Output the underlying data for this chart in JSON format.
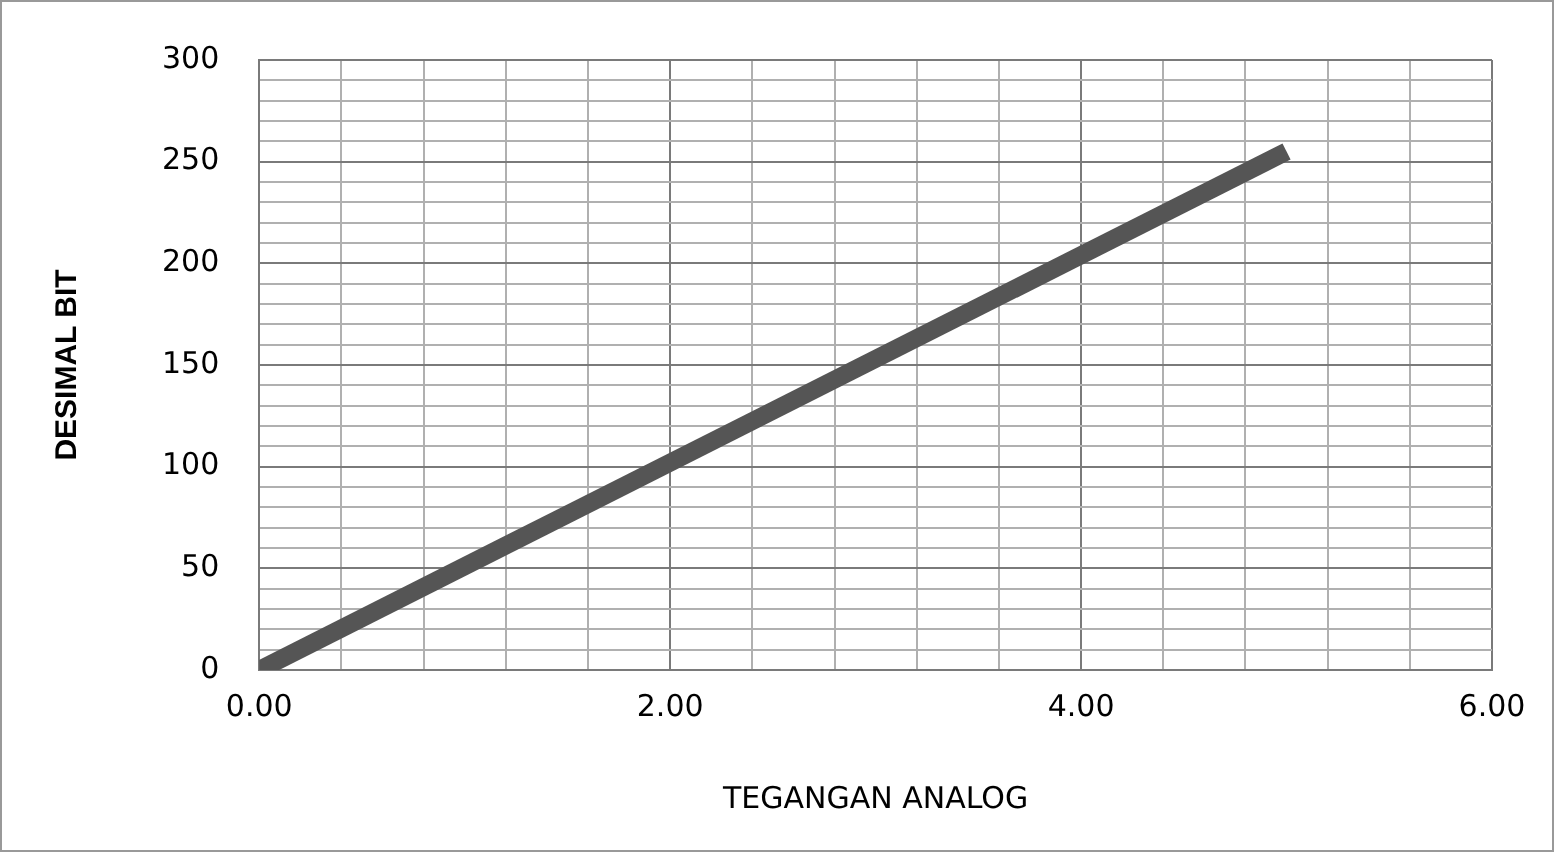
{
  "chart_data": {
    "type": "line",
    "xlabel": "TEGANGAN ANALOG",
    "ylabel": "DESIMAL BIT",
    "x": [
      0,
      5
    ],
    "series": [
      {
        "color": "#555555",
        "values": [
          0,
          255
        ]
      }
    ],
    "xlim": [
      0,
      6
    ],
    "xticks": [
      {
        "value": 0,
        "label": "0.00"
      },
      {
        "value": 0.4,
        "label": null
      },
      {
        "value": 0.8,
        "label": null
      },
      {
        "value": 1.2,
        "label": null
      },
      {
        "value": 1.6,
        "label": null
      },
      {
        "value": 2,
        "label": "2.00"
      },
      {
        "value": 2.4,
        "label": null
      },
      {
        "value": 2.8,
        "label": null
      },
      {
        "value": 3.2,
        "label": null
      },
      {
        "value": 3.6,
        "label": null
      },
      {
        "value": 4,
        "label": "4.00"
      },
      {
        "value": 4.4,
        "label": null
      },
      {
        "value": 4.8,
        "label": null
      },
      {
        "value": 5.2,
        "label": null
      },
      {
        "value": 5.6,
        "label": null
      },
      {
        "value": 6,
        "label": "6.00"
      }
    ],
    "ylim": [
      0,
      300
    ],
    "yticks": [
      0,
      {
        "value": 10,
        "label": null
      },
      {
        "value": 20,
        "label": null
      },
      {
        "value": 30,
        "label": null
      },
      {
        "value": 40,
        "label": null
      },
      50,
      {
        "value": 60,
        "label": null
      },
      {
        "value": 70,
        "label": null
      },
      {
        "value": 80,
        "label": null
      },
      {
        "value": 90,
        "label": null
      },
      100,
      {
        "value": 110,
        "label": null
      },
      {
        "value": 120,
        "label": null
      },
      {
        "value": 130,
        "label": null
      },
      {
        "value": 140,
        "label": null
      },
      150,
      {
        "value": 160,
        "label": null
      },
      {
        "value": 170,
        "label": null
      },
      {
        "value": 180,
        "label": null
      },
      {
        "value": 190,
        "label": null
      },
      200,
      {
        "value": 210,
        "label": null
      },
      {
        "value": 220,
        "label": null
      },
      {
        "value": 230,
        "label": null
      },
      {
        "value": 240,
        "label": null
      },
      250,
      {
        "value": 260,
        "label": null
      },
      {
        "value": 270,
        "label": null
      },
      {
        "value": 280,
        "label": null
      },
      {
        "value": 290,
        "label": null
      },
      300
    ],
    "grid": true,
    "legend": false,
    "marker": "none",
    "line_style": "solid"
  }
}
